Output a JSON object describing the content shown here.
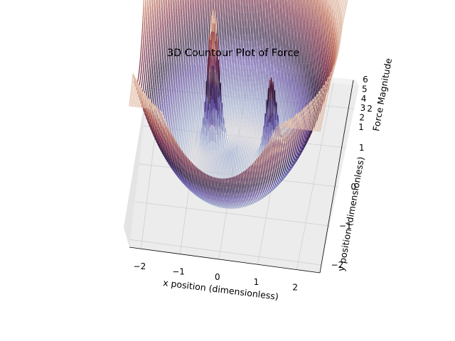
{
  "chart_data": {
    "type": "contour3d",
    "title": "3D Countour Plot of Force",
    "xlabel": "x position (dimensionless)",
    "ylabel": "y position (dimensionless)",
    "zlabel": "Force Magnitude",
    "xlim": [
      -2.3,
      2.6
    ],
    "ylim": [
      -2.2,
      2.6
    ],
    "zlim": [
      0,
      6
    ],
    "xticks": [
      "−2",
      "−1",
      "0",
      "1",
      "2"
    ],
    "yticks": [
      "−2",
      "−1",
      "0",
      "1",
      "2"
    ],
    "zticks": [
      "1",
      "2",
      "3",
      "4",
      "5",
      "6"
    ],
    "colormap": "twilight_shifted",
    "surface_features": [
      {
        "name": "bowl",
        "description": "force rises toward the corners of the domain"
      },
      {
        "name": "peak",
        "x": -0.55,
        "y": 0.55,
        "approx_height": 6
      },
      {
        "name": "peak",
        "x": 0.9,
        "y": 0.35,
        "approx_height": 3.5
      },
      {
        "name": "ring",
        "x": 0.0,
        "y": 0.0,
        "radius": 1.0,
        "note": "near-zero force ring"
      }
    ],
    "grid": true
  }
}
